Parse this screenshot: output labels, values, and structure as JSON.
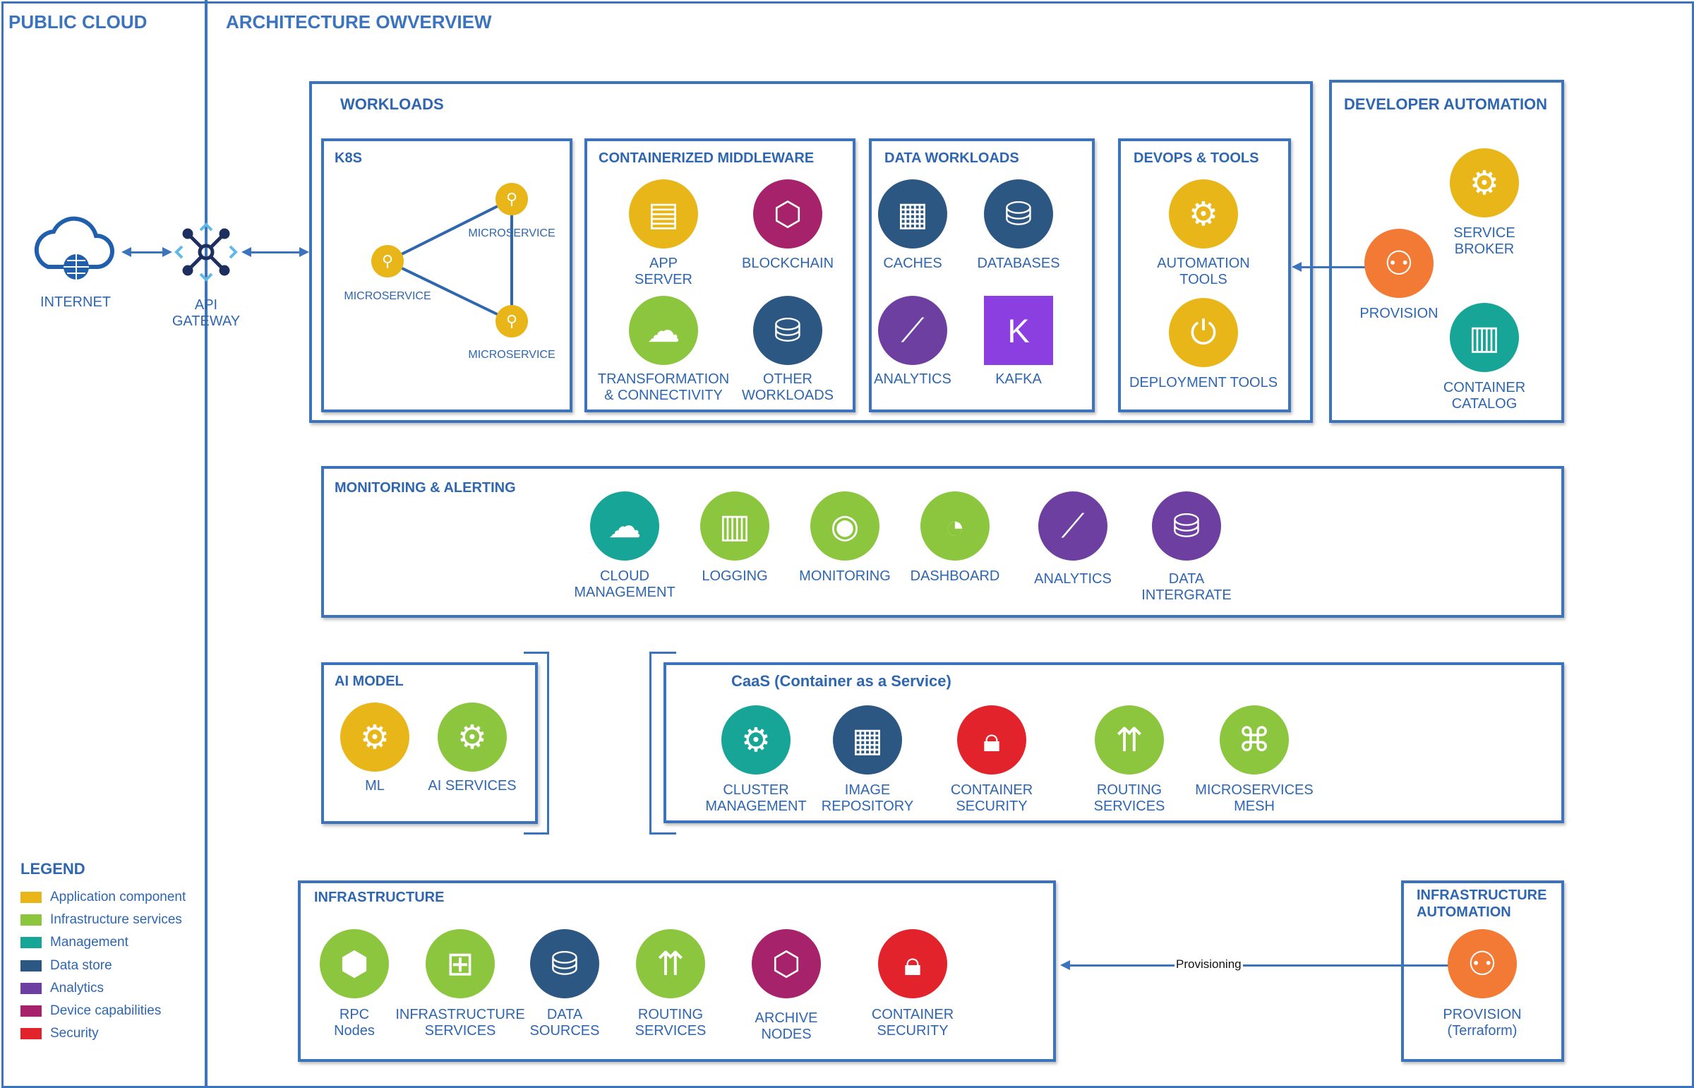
{
  "header": {
    "section_label": "PUBLIC CLOUD",
    "title": "ARCHITECTURE OWVERVIEW"
  },
  "colors": {
    "border": "#3b73bd",
    "application_component": "#e9b61a",
    "infrastructure_services": "#8cc63f",
    "management": "#17a597",
    "data_store": "#2b5782",
    "analytics": "#6d3fa0",
    "device_capabilities": "#a6226a",
    "security": "#e3232b",
    "automation": "#f27a35"
  },
  "internet": {
    "label": "INTERNET",
    "icon": "cloud-globe-icon"
  },
  "api_gateway": {
    "label": "API\nGATEWAY",
    "icon": "gateway-icon"
  },
  "workloads": {
    "title": "WORKLOADS",
    "k8s": {
      "title": "K8S",
      "microservices": [
        "MICROSERVICE",
        "MICROSERVICE",
        "MICROSERVICE"
      ]
    },
    "middleware": {
      "title": "CONTAINERIZED MIDDLEWARE",
      "items": [
        {
          "label": "APP\nSERVER",
          "icon": "server-icon"
        },
        {
          "label": "BLOCKCHAIN",
          "icon": "blockchain-icon"
        },
        {
          "label": "TRANSFORMATION\n& CONNECTIVITY",
          "icon": "cloud-sync-icon"
        },
        {
          "label": "OTHER\nWORKLOADS",
          "icon": "database-icon"
        }
      ]
    },
    "data": {
      "title": "DATA WORKLOADS",
      "items": [
        {
          "label": "CACHES",
          "icon": "cache-icon"
        },
        {
          "label": "DATABASES",
          "icon": "database-icon"
        },
        {
          "label": "ANALYTICS",
          "icon": "analytics-icon"
        },
        {
          "label": "KAFKA",
          "icon": "kafka-icon"
        }
      ]
    },
    "devops": {
      "title": "DEVOPS & TOOLS",
      "items": [
        {
          "label": "AUTOMATION\nTOOLS",
          "icon": "gear-play-icon"
        },
        {
          "label": "DEPLOYMENT TOOLS",
          "icon": "deploy-icon"
        }
      ]
    }
  },
  "developer_automation": {
    "title": "DEVELOPER AUTOMATION",
    "items": [
      {
        "label": "SERVICE\nBROKER",
        "icon": "hand-gear-icon"
      },
      {
        "label": "PROVISION",
        "icon": "hierarchy-icon"
      },
      {
        "label": "CONTAINER\nCATALOG",
        "icon": "book-icon"
      }
    ]
  },
  "monitoring": {
    "title": "MONITORING & ALERTING",
    "items": [
      {
        "label": "CLOUD\nMANAGEMENT",
        "icon": "cloud-management-icon"
      },
      {
        "label": "LOGGING",
        "icon": "logging-icon"
      },
      {
        "label": "MONITORING",
        "icon": "eye-icon"
      },
      {
        "label": "DASHBOARD",
        "icon": "dashboard-icon"
      },
      {
        "label": "ANALYTICS",
        "icon": "analytics-icon"
      },
      {
        "label": "DATA\nINTERGRATE",
        "icon": "data-integrate-icon"
      }
    ]
  },
  "ai_model": {
    "title": "AI MODEL",
    "items": [
      {
        "label": "ML",
        "icon": "gears-icon"
      },
      {
        "label": "AI SERVICES",
        "icon": "ai-services-icon"
      }
    ]
  },
  "caas": {
    "title": "CaaS (Container as a Service)",
    "items": [
      {
        "label": "CLUSTER\nMANAGEMENT",
        "icon": "gear-icon"
      },
      {
        "label": "IMAGE\nREPOSITORY",
        "icon": "grid-icon"
      },
      {
        "label": "CONTAINER\nSECURITY",
        "icon": "lock-icon"
      },
      {
        "label": "ROUTING\nSERVICES",
        "icon": "routing-icon"
      },
      {
        "label": "MICROSERVICES\nMESH",
        "icon": "mesh-icon"
      }
    ]
  },
  "infrastructure": {
    "title": "INFRASTRUCTURE",
    "items": [
      {
        "label": "RPC\nNodes",
        "icon": "cubes-icon"
      },
      {
        "label": "INFRASTRUCTURE\nSERVICES",
        "icon": "network-icon"
      },
      {
        "label": "DATA\nSOURCES",
        "icon": "data-sources-icon"
      },
      {
        "label": "ROUTING\nSERVICES",
        "icon": "routing-icon"
      },
      {
        "label": "ARCHIVE\nNODES",
        "icon": "blockchain-icon"
      },
      {
        "label": "CONTAINER\nSECURITY",
        "icon": "lock-icon"
      }
    ]
  },
  "infrastructure_automation": {
    "title": "INFRASTRUCTURE\nAUTOMATION",
    "items": [
      {
        "label": "PROVISION\n(Terraform)",
        "icon": "hierarchy-icon"
      }
    ]
  },
  "provisioning_label": "Provisioning",
  "legend": {
    "title": "LEGEND",
    "items": [
      {
        "label": "Application component",
        "color": "#e9b61a"
      },
      {
        "label": "Infrastructure services",
        "color": "#8cc63f"
      },
      {
        "label": "Management",
        "color": "#17a597"
      },
      {
        "label": "Data store",
        "color": "#2b5782"
      },
      {
        "label": "Analytics",
        "color": "#6d3fa0"
      },
      {
        "label": "Device capabilities",
        "color": "#a6226a"
      },
      {
        "label": "Security",
        "color": "#e3232b"
      }
    ]
  }
}
